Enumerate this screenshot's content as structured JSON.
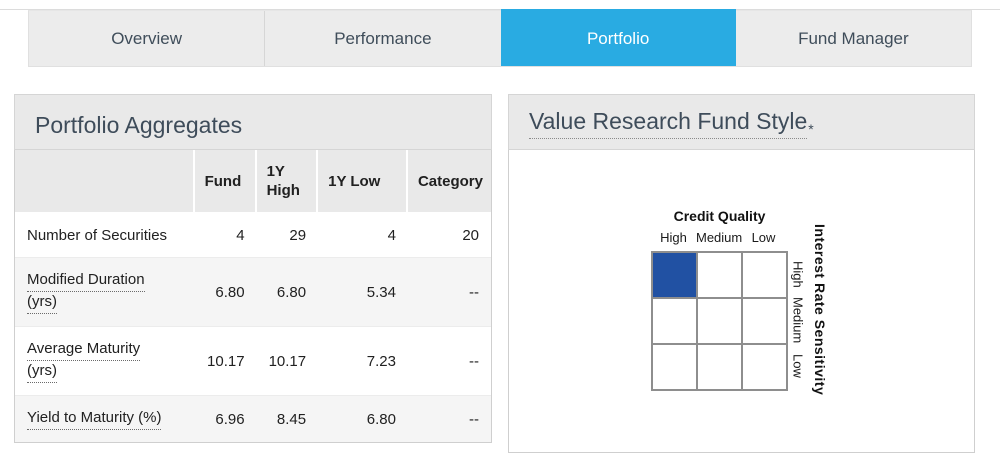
{
  "colors": {
    "accent": "#29abe2",
    "grid-blue": "#2151a3",
    "heading": "#3e4c5a"
  },
  "tabs": {
    "active": "Portfolio",
    "items": [
      {
        "label": "Overview"
      },
      {
        "label": "Performance"
      },
      {
        "label": "Portfolio"
      },
      {
        "label": "Fund Manager"
      }
    ]
  },
  "portfolio_aggregates": {
    "title": "Portfolio Aggregates",
    "columns": {
      "c0": "",
      "c1": "Fund",
      "c2": "1Y High",
      "c3": "1Y Low",
      "c4": "Category"
    },
    "rows": [
      {
        "label": "Number of Securities",
        "label2": "",
        "fund": "4",
        "high": "29",
        "low": "4",
        "category": "20"
      },
      {
        "label": "Modified Duration",
        "label2": "(yrs)",
        "fund": "6.80",
        "high": "6.80",
        "low": "5.34",
        "category": "--"
      },
      {
        "label": "Average Maturity",
        "label2": "(yrs)",
        "fund": "10.17",
        "high": "10.17",
        "low": "7.23",
        "category": "--"
      },
      {
        "label": "Yield to Maturity (%)",
        "label2": "",
        "fund": "6.96",
        "high": "8.45",
        "low": "6.80",
        "category": "--"
      }
    ]
  },
  "fund_style": {
    "title": "Value Research Fund Style",
    "asterisk": "*",
    "column_axis": "Credit Quality",
    "row_axis": "Interest Rate Sensitivity",
    "column_labels": [
      "High",
      "Medium",
      "Low"
    ],
    "row_labels": [
      "High",
      "Medium",
      "Low"
    ],
    "selected": {
      "credit_quality": "High",
      "interest_rate_sensitivity": "High"
    }
  }
}
